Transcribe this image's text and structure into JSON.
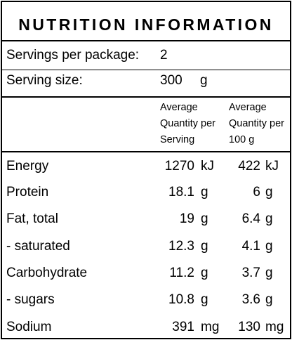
{
  "title": "NUTRITION INFORMATION",
  "servings": {
    "label": "Servings per package:",
    "value": "2"
  },
  "serving_size": {
    "label": "Serving size:",
    "value": "300",
    "unit": "g"
  },
  "headers": {
    "per_serving": [
      "Average",
      "Quantity per",
      "Serving"
    ],
    "per_100g": [
      "Average",
      "Quantity per",
      "100 g"
    ]
  },
  "rows": [
    {
      "name": "Energy",
      "serving_value": "1270",
      "serving_unit": "kJ",
      "per100_value": "422",
      "per100_unit": "kJ"
    },
    {
      "name": "Protein",
      "serving_value": "18.1",
      "serving_unit": "g",
      "per100_value": "6",
      "per100_unit": "g"
    },
    {
      "name": "Fat, total",
      "serving_value": "19",
      "serving_unit": "g",
      "per100_value": "6.4",
      "per100_unit": "g"
    },
    {
      "name": "- saturated",
      "serving_value": "12.3",
      "serving_unit": "g",
      "per100_value": "4.1",
      "per100_unit": "g"
    },
    {
      "name": "Carbohydrate",
      "serving_value": "11.2",
      "serving_unit": "g",
      "per100_value": "3.7",
      "per100_unit": "g"
    },
    {
      "name": "- sugars",
      "serving_value": "10.8",
      "serving_unit": "g",
      "per100_value": "3.6",
      "per100_unit": "g"
    },
    {
      "name": "Sodium",
      "serving_value": "391",
      "serving_unit": "mg",
      "per100_value": "130",
      "per100_unit": "mg"
    }
  ]
}
